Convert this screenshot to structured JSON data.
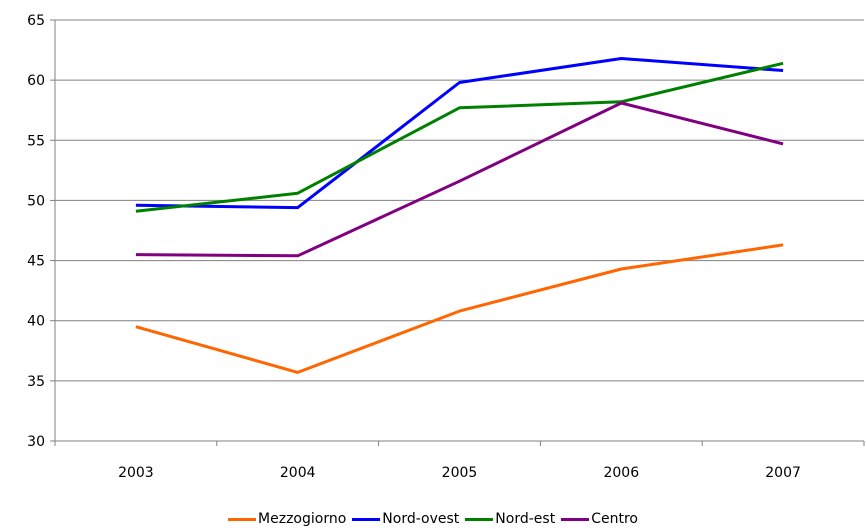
{
  "chart_data": {
    "type": "line",
    "title": "",
    "xlabel": "",
    "ylabel": "",
    "categories": [
      "2003",
      "2004",
      "2005",
      "2006",
      "2007"
    ],
    "ylim": [
      30,
      65
    ],
    "yticks": [
      30,
      35,
      40,
      45,
      50,
      55,
      60,
      65
    ],
    "grid": true,
    "legend_position": "bottom",
    "series": [
      {
        "name": "Mezzogiorno",
        "color": "#ff6600",
        "values": [
          39.5,
          35.7,
          40.8,
          44.3,
          46.3
        ]
      },
      {
        "name": "Nord-ovest",
        "color": "#0000ff",
        "values": [
          49.6,
          49.4,
          59.8,
          61.8,
          60.8
        ]
      },
      {
        "name": "Nord-est",
        "color": "#008000",
        "values": [
          49.1,
          50.6,
          57.7,
          58.2,
          61.4
        ]
      },
      {
        "name": "Centro",
        "color": "#800080",
        "values": [
          45.5,
          45.4,
          51.6,
          58.1,
          54.7
        ]
      }
    ]
  }
}
